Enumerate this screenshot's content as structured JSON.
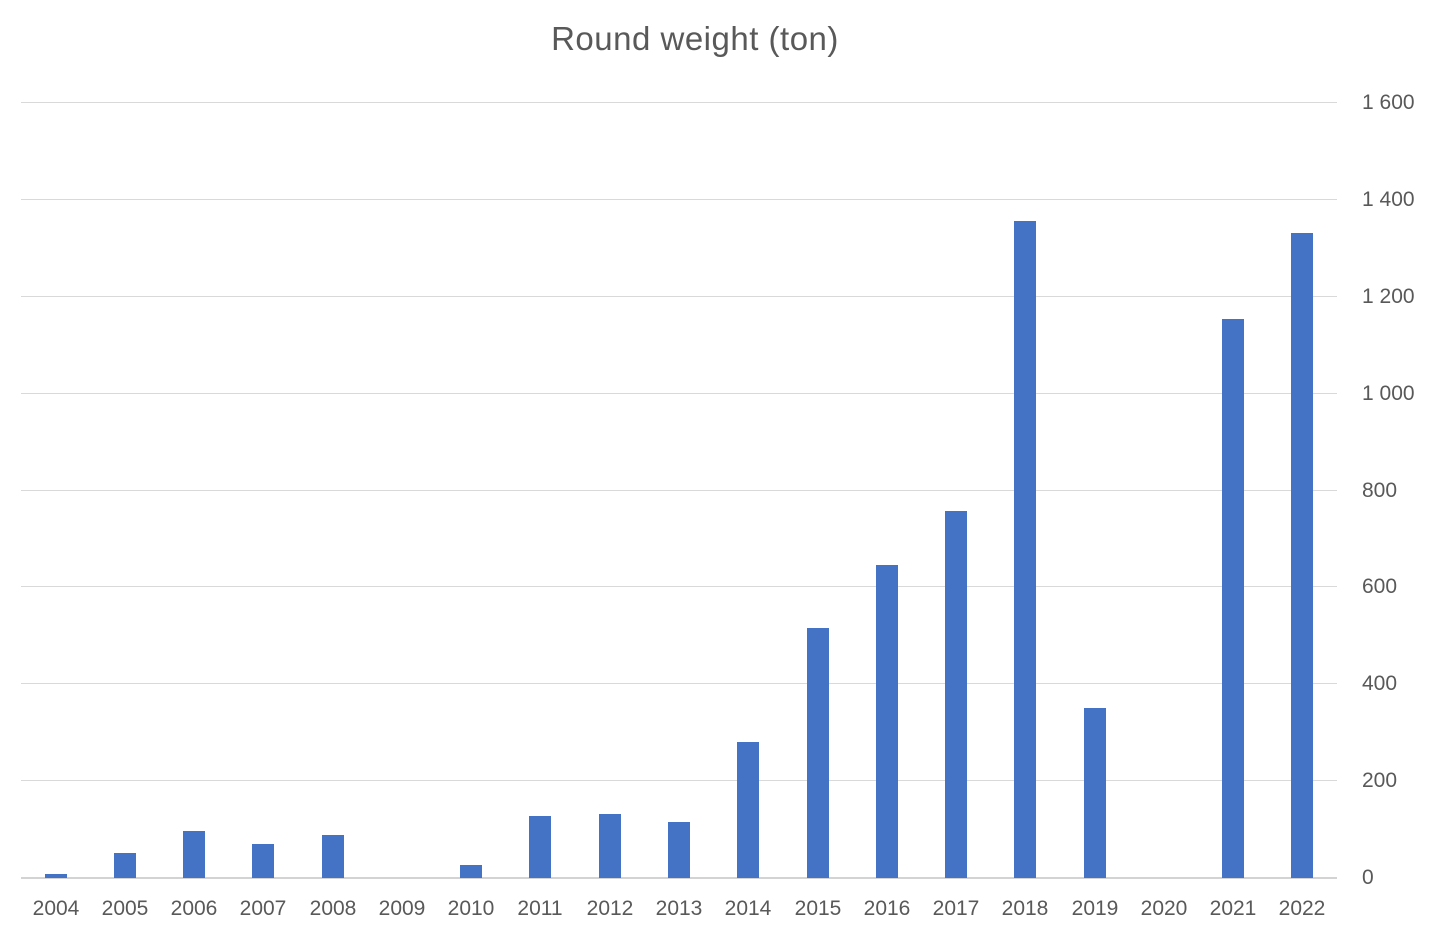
{
  "title": "Round weight (ton)",
  "colors": {
    "bar": "#4472c4",
    "gridline": "#d9d9d9",
    "axis_line": "#d3d3d3",
    "text": "#595959",
    "background": "#ffffff"
  },
  "chart_data": {
    "type": "bar",
    "title": "Round weight (ton)",
    "categories": [
      "2004",
      "2005",
      "2006",
      "2007",
      "2008",
      "2009",
      "2010",
      "2011",
      "2012",
      "2013",
      "2014",
      "2015",
      "2016",
      "2017",
      "2018",
      "2019",
      "2020",
      "2021",
      "2022"
    ],
    "values": [
      8,
      52,
      97,
      70,
      88,
      0,
      27,
      128,
      132,
      116,
      281,
      516,
      646,
      758,
      1357,
      351,
      0,
      1154,
      1332
    ],
    "xlabel": "",
    "ylabel": "",
    "ylim": [
      0,
      1600
    ],
    "ytick_interval": 200,
    "ytick_labels": [
      "0",
      "200",
      "400",
      "600",
      "800",
      "1 000",
      "1 200",
      "1 400",
      "1 600"
    ],
    "y_axis_side": "right",
    "grid": "horizontal",
    "legend": "none",
    "data_labels": "none"
  }
}
